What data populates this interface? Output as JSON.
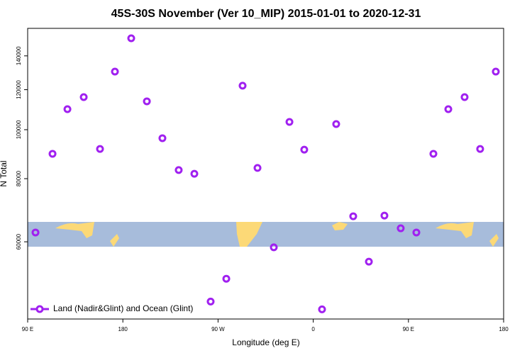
{
  "chart_data": {
    "type": "scatter",
    "title": "45S-30S November (Ver 10_MIP)   2015-01-01 to 2020-12-31",
    "xlabel": "Longitude (deg E)",
    "ylabel": "N Total",
    "log_y": true,
    "xlim": [
      90,
      540
    ],
    "ylim": [
      42200,
      158700
    ],
    "xticks": [
      {
        "value": 90,
        "label": "90 E"
      },
      180,
      {
        "value": 270,
        "label": "90 W"
      },
      {
        "value": 360,
        "label": "0"
      },
      {
        "value": 450,
        "label": "90 E"
      },
      {
        "value": 540,
        "label": "180"
      }
    ],
    "yticks": [
      60000,
      80000,
      100000,
      120000,
      140000
    ],
    "legend": "bottom-left",
    "series": [
      {
        "name": "Land (Nadir&Glint) and Ocean (Glint)",
        "color": "#a020f0",
        "x": [
          97.4,
          113.5,
          127.6,
          143.0,
          158.4,
          172.5,
          187.9,
          202.7,
          217.4,
          232.8,
          247.6,
          263.0,
          277.8,
          293.2,
          307.3,
          322.7,
          337.5,
          351.5,
          368.3,
          381.7,
          397.8,
          412.6,
          427.3,
          442.7,
          457.5,
          473.6,
          487.7,
          503.1,
          517.8,
          532.6
        ],
        "values": [
          62600,
          89600,
          109800,
          116000,
          91600,
          130300,
          151700,
          113800,
          96200,
          83200,
          81800,
          45700,
          50700,
          122200,
          84000,
          58500,
          103600,
          91300,
          44100,
          102600,
          67400,
          54800,
          67600,
          63800,
          62600,
          89600,
          109800,
          116000,
          91600,
          130300
        ]
      }
    ]
  }
}
